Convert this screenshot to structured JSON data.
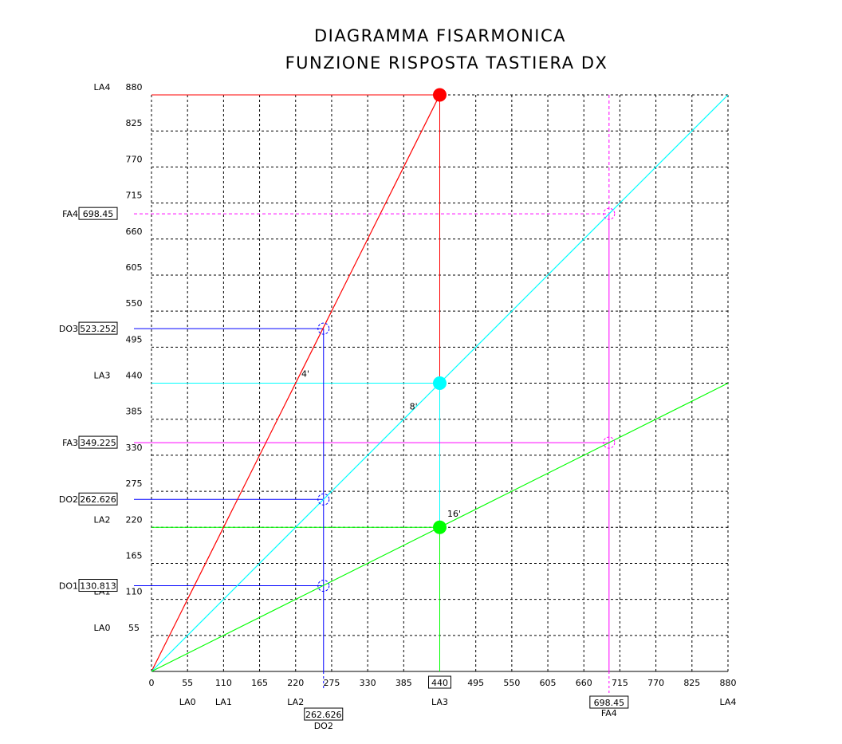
{
  "chart_data": {
    "type": "line",
    "title": "DIAGRAMMA FISARMONICA",
    "subtitle": "FUNZIONE RISPOSTA TASTIERA DX",
    "xlim": [
      0,
      880
    ],
    "ylim": [
      0,
      880
    ],
    "grid": true,
    "x_ticks": [
      "0",
      "55",
      "110",
      "165",
      "220",
      "275",
      "330",
      "385",
      "440",
      "495",
      "550",
      "605",
      "660",
      "715",
      "770",
      "825",
      "880"
    ],
    "x_tick_values": [
      0,
      55,
      110,
      165,
      220,
      275,
      330,
      385,
      440,
      495,
      550,
      605,
      660,
      715,
      770,
      825,
      880
    ],
    "y_ticks": [
      "55",
      "110",
      "165",
      "220",
      "275",
      "330",
      "385",
      "440",
      "495",
      "550",
      "605",
      "660",
      "715",
      "770",
      "825",
      "880"
    ],
    "y_tick_values": [
      55,
      110,
      165,
      220,
      275,
      330,
      385,
      440,
      495,
      550,
      605,
      660,
      715,
      770,
      825,
      880
    ],
    "x_note_labels": [
      {
        "text": "LA0",
        "x": 55
      },
      {
        "text": "LA1",
        "x": 110
      },
      {
        "text": "LA2",
        "x": 220
      },
      {
        "text": "LA3",
        "x": 440
      },
      {
        "text": "LA4",
        "x": 880
      }
    ],
    "y_note_labels": [
      {
        "text": "LA0",
        "y": 55
      },
      {
        "text": "LA1",
        "y": 110
      },
      {
        "text": "LA2",
        "y": 220
      },
      {
        "text": "LA3",
        "y": 440
      },
      {
        "text": "LA4",
        "y": 880
      }
    ],
    "series": [
      {
        "name": "4'",
        "color": "#ff0000",
        "x": [
          0,
          440
        ],
        "y": [
          0,
          880
        ],
        "label_x": 235,
        "label_y": 450
      },
      {
        "name": "8'",
        "color": "#00ffff",
        "x": [
          0,
          880
        ],
        "y": [
          0,
          880
        ],
        "label_x": 400,
        "label_y": 400
      },
      {
        "name": "16'",
        "color": "#00ff00",
        "x": [
          0,
          880
        ],
        "y": [
          0,
          440
        ],
        "label_x": 462,
        "label_y": 236
      }
    ],
    "key_points": [
      {
        "x": 440,
        "y": 880,
        "color": "#ff0000"
      },
      {
        "x": 440,
        "y": 440,
        "color": "#00ffff"
      },
      {
        "x": 440,
        "y": 220,
        "color": "#00ff00"
      }
    ],
    "x_boxed": [
      {
        "value": "440",
        "x": 440
      },
      {
        "value": "262.626",
        "x": 262.626,
        "note": "DO2"
      },
      {
        "value": "698.45",
        "x": 698.45,
        "note": "FA4"
      }
    ],
    "y_boxed": [
      {
        "note": "FA4",
        "value": "698.45",
        "y": 698.45,
        "color": "#ff00ff",
        "dashed": true
      },
      {
        "note": "DO3",
        "value": "523.252",
        "y": 523.252,
        "color": "#0000ff",
        "dashed": false
      },
      {
        "note": "FA3",
        "value": "349.225",
        "y": 349.225,
        "color": "#ff00ff",
        "dashed": false
      },
      {
        "note": "DO2",
        "value": "262.626",
        "y": 262.626,
        "color": "#0000ff",
        "dashed": false
      },
      {
        "note": "DO1",
        "value": "130.813",
        "y": 130.813,
        "color": "#0000ff",
        "dashed": false
      }
    ],
    "y_dashed_circle": [
      {
        "x": 262.626,
        "y": 523.252,
        "color": "#0000ff"
      },
      {
        "x": 262.626,
        "y": 262.626,
        "color": "#0000ff"
      },
      {
        "x": 262.626,
        "y": 130.813,
        "color": "#0000ff"
      },
      {
        "x": 698.45,
        "y": 698.45,
        "color": "#ff00ff"
      },
      {
        "x": 698.45,
        "y": 349.225,
        "color": "#ff00ff"
      }
    ],
    "colors": {
      "red": "#ff0000",
      "cyan": "#00ffff",
      "green": "#00ff00",
      "blue": "#0000ff",
      "magenta": "#ff00ff",
      "grid": "#000000"
    }
  }
}
